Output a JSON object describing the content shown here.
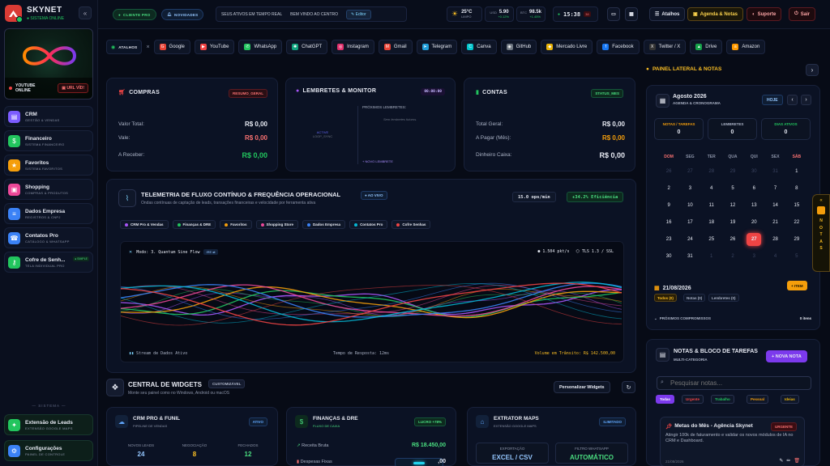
{
  "brand": {
    "title": "SKYNET",
    "subtitle": "● SISTEMA ONLINE"
  },
  "hero": {
    "line1": "YOUTUBE",
    "line2": "ONLINE",
    "url_btn": "▣ URL VÍD!"
  },
  "sidebar": {
    "items": [
      {
        "title": "CRM",
        "sub": "GESTÃO & VENDAS",
        "color": "#7c5cff",
        "icon": "briefcase-icon",
        "glyph": "▤"
      },
      {
        "title": "Financeiro",
        "sub": "SISTEMA FINANCEIRO",
        "color": "#22c55e",
        "icon": "money-icon",
        "glyph": "$"
      },
      {
        "title": "Favoritos",
        "sub": "SISTEMA FAVORITOS",
        "color": "#f59e0b",
        "icon": "star-icon",
        "glyph": "★"
      },
      {
        "title": "Shopping",
        "sub": "COMPRAS & PRODUTOS",
        "color": "#ec4899",
        "icon": "bag-icon",
        "glyph": "▣"
      },
      {
        "title": "Dados Empresa",
        "sub": "REGISTROS & CNPJ",
        "color": "#3b82f6",
        "icon": "database-icon",
        "glyph": "≡"
      },
      {
        "title": "Contatos Pro",
        "sub": "CATÁLOGO & WHATSAPP",
        "color": "#3b82f6",
        "icon": "contacts-icon",
        "glyph": "☎"
      },
      {
        "title": "Cofre de Senh...",
        "sub": "TELA INDIVIDUAL PRO",
        "color": "#22c55e",
        "icon": "key-icon",
        "glyph": "⚷",
        "badge": "● SIMPLE"
      }
    ],
    "system_label": "— SISTEMA —",
    "system_items": [
      {
        "title": "Extensão de Leads",
        "sub": "EXTENSÃO GOOGLE MAPS",
        "color": "#22c55e",
        "icon": "puzzle-icon",
        "glyph": "✦"
      },
      {
        "title": "Configurações",
        "sub": "PAINEL DE CONTROLE",
        "color": "#3b82f6",
        "icon": "gear-icon",
        "glyph": "⚙"
      }
    ]
  },
  "topbar": {
    "client_pill": "CLIENTE PRO",
    "news_pill": "NOVIDADES",
    "ticker_1": "SEUS ATIVOS EM TEMPO REAL",
    "ticker_2": "BEM VINDO AO CENTRO",
    "editor": "Editor",
    "weather_temp": "25°C",
    "weather_label": "LIMPO",
    "usd_label": "USD",
    "usd_value": "5.90",
    "usd_change": "+0.12%",
    "btc_label": "BTC",
    "btc_value": "98.5k",
    "btc_change": "+1.45%",
    "clock": "15:38",
    "clock_badge": "38",
    "shortcuts_btn": "Atalhos",
    "agenda_btn": "Agenda & Notas",
    "support_btn": "Suporte",
    "exit_btn": "Sair"
  },
  "shortcuts": {
    "label": "ATALHOS",
    "items": [
      {
        "name": "Google",
        "color": "#ea4335",
        "glyph": "G"
      },
      {
        "name": "YouTube",
        "color": "#ef4444",
        "glyph": "▶"
      },
      {
        "name": "WhatsApp",
        "color": "#22c55e",
        "glyph": "✆"
      },
      {
        "name": "ChatGPT",
        "color": "#10a37f",
        "glyph": "✺"
      },
      {
        "name": "Instagram",
        "color": "#e1306c",
        "glyph": "◎"
      },
      {
        "name": "Gmail",
        "color": "#ea4335",
        "glyph": "M"
      },
      {
        "name": "Telegram",
        "color": "#229ed9",
        "glyph": "➤"
      },
      {
        "name": "Canva",
        "color": "#00c4cc",
        "glyph": "C"
      },
      {
        "name": "GitHub",
        "color": "#6e7681",
        "glyph": "◉"
      },
      {
        "name": "Mercado Livre",
        "color": "#eab308",
        "glyph": "◆"
      },
      {
        "name": "Facebook",
        "color": "#1877f2",
        "glyph": "f"
      },
      {
        "name": "Twitter / X",
        "color": "#333",
        "glyph": "X"
      },
      {
        "name": "Drive",
        "color": "#16a34a",
        "glyph": "▲"
      },
      {
        "name": "Amazon",
        "color": "#ff9900",
        "glyph": "a"
      }
    ]
  },
  "compras": {
    "title": "COMPRAS",
    "badge": "RESUMO_GERAL",
    "rows": [
      {
        "label": "Valor Total:",
        "value": "R$ 0,00",
        "color": "#e6e9f2"
      },
      {
        "label": "Vale:",
        "value": "R$ 0,00",
        "color": "#f87171"
      },
      {
        "label": "A Receber:",
        "value": "R$ 0,00",
        "color": "#22c55e"
      }
    ]
  },
  "lembretes": {
    "title": "LEMBRETES & MONITOR",
    "time": "00:00:00",
    "active": "ACTIVE",
    "loop": "LOOP_SYNC",
    "next": "PRÓXIMOS LEMBRETES:",
    "empty": "Sem lembretes futuros.",
    "new": "+ NOVO LEMBRETE"
  },
  "contas": {
    "title": "CONTAS",
    "badge": "STATUS_MES",
    "rows": [
      {
        "label": "Total Geral:",
        "value": "R$ 0,00",
        "color": "#e6e9f2"
      },
      {
        "label": "A Pagar (Mês):",
        "value": "R$ 0,00",
        "color": "#f59e0b"
      },
      {
        "label": "Dinheiro Caixa:",
        "value": "R$ 0,00",
        "color": "#e6e9f2"
      }
    ]
  },
  "telemetry": {
    "title": "TELEMETRIA DE FLUXO CONTÍNUO & FREQUÊNCIA OPERACIONAL",
    "live": "● AO VIVO",
    "subtitle": "Ondas contínuas de captação de leads, transações financeiras e velocidade por ferramenta ativa",
    "ops": "15.0 ops/min",
    "eff": "+34.2% Eficiência",
    "chips": [
      {
        "name": "CRM Pro & Vendas",
        "color": "#a855f7"
      },
      {
        "name": "Finanças & DRE",
        "color": "#22c55e"
      },
      {
        "name": "Favoritos",
        "color": "#f59e0b"
      },
      {
        "name": "Shopping Store",
        "color": "#ec4899"
      },
      {
        "name": "Dados Empresa",
        "color": "#3b82f6"
      },
      {
        "name": "Contatos Pro",
        "color": "#06b6d4"
      },
      {
        "name": "Cofre Senhas",
        "color": "#ef4444"
      }
    ],
    "mode": "Modo: 3. Quantum Sine Flow",
    "mode_tag": "IRE ⇄",
    "rate": "● 1.504 pkt/s",
    "tls": "⬡ TLS 1.3 / SSL",
    "stream": "Stream de Dados Ativo",
    "response": "Tempo de Resposta: 12ms",
    "volume": "Volume em Trânsito: R$ 142.500,00"
  },
  "widgets": {
    "title": "CENTRAL DE WIDGETS",
    "tag": "CUSTOMIZÁVEL",
    "subtitle": "Monte seu painel como no Windows, Android ou macOS",
    "personalize": "Personalizar Widgets",
    "crm": {
      "title": "CRM PRO & FUNIL",
      "sub": "PIPELINE DE VENDAS",
      "badge": "ATIVO",
      "stats": [
        {
          "l": "NOVOS LEADS",
          "v": "24"
        },
        {
          "l": "NEGOCIAÇÃO",
          "v": "8"
        },
        {
          "l": "FECHADOS",
          "v": "12"
        }
      ]
    },
    "fin": {
      "title": "FINANÇAS & DRE",
      "sub": "FLUXO DE CAIXA",
      "badge": "LUCRO +78%",
      "r1l": "Receita Bruta",
      "r1v": "R$ 18.450,00",
      "r2l": "Despesas Fixas",
      "r2v": ",00"
    },
    "maps": {
      "title": "EXTRATOR MAPS",
      "sub": "EXTENSÃO GOOGLE MAPS",
      "badge": "ILIMITADO",
      "e1": "EXPORTAÇÃO",
      "v1": "EXCEL / CSV",
      "e2": "FILTRO WHATSAPP",
      "v2": "AUTOMÁTICO"
    }
  },
  "rpanel": {
    "title": "PAINEL LATERAL & NOTAS",
    "month": "Agosto 2026",
    "month_sub": "AGENDA & CRONOGRAMA",
    "today_btn": "HOJE",
    "stats": [
      {
        "l": "NOTAS / TAREFAS",
        "v": "0",
        "c": "#f59e0b"
      },
      {
        "l": "LEMBRETES",
        "v": "0",
        "c": "#aab2c5"
      },
      {
        "l": "DIAS ATIVOS",
        "v": "0",
        "c": "#22c55e"
      }
    ],
    "weekdays": [
      "DOM",
      "SEG",
      "TER",
      "QUA",
      "QUI",
      "SEX",
      "SÁB"
    ],
    "weeks": [
      [
        "26",
        "27",
        "28",
        "29",
        "30",
        "31",
        "1"
      ],
      [
        "2",
        "3",
        "4",
        "5",
        "6",
        "7",
        "8"
      ],
      [
        "9",
        "10",
        "11",
        "12",
        "13",
        "14",
        "15"
      ],
      [
        "16",
        "17",
        "18",
        "19",
        "20",
        "21",
        "22"
      ],
      [
        "23",
        "24",
        "25",
        "26",
        "27",
        "28",
        "29"
      ],
      [
        "30",
        "31",
        "1",
        "2",
        "3",
        "4",
        "5"
      ]
    ],
    "date": "21/08/2026",
    "item_btn": "+ ITEM",
    "tabs": [
      "Todos (0)",
      "Notas (0)",
      "Lembretes (0)"
    ],
    "next_comp": "PRÓXIMOS COMPROMISSOS",
    "next_count": "0 itens",
    "notes_title": "NOTAS & BLOCO DE TAREFAS",
    "notes_sub": "MULTI-CATEGORIA",
    "new_note": "+ NOVA NOTA",
    "search_ph": "Pesquisar notas...",
    "filters": [
      {
        "n": "Todas",
        "c": "#7c3aed"
      },
      {
        "n": "Urgente",
        "c": "#ef4444"
      },
      {
        "n": "Trabalho",
        "c": "#22c55e"
      },
      {
        "n": "Pessoal",
        "c": "#f59e0b"
      },
      {
        "n": "Ideias",
        "c": "#eab308"
      }
    ],
    "note": {
      "title": "Metas do Mês - Agência Skynet",
      "badge": "URGENTE",
      "body": "Atingir 100k de faturamento e validar os novos módulos de IA no CRM e Dashboard.",
      "date": "21/08/2026"
    },
    "side_tab": "NOTAS"
  }
}
